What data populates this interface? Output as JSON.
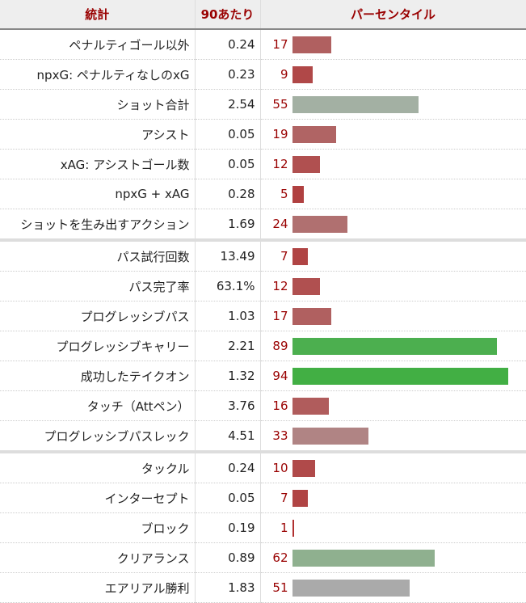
{
  "headers": {
    "stat": "統計",
    "per90": "90あたり",
    "percentile": "パーセンタイル"
  },
  "rows": [
    {
      "stat": "ペナルティゴール以外",
      "per90": "0.24",
      "pct": 17,
      "color": "#b06060"
    },
    {
      "stat": "npxG: ペナルティなしのxG",
      "per90": "0.23",
      "pct": 9,
      "color": "#b04848"
    },
    {
      "stat": "ショット合計",
      "per90": "2.54",
      "pct": 55,
      "color": "#a3b0a3"
    },
    {
      "stat": "アシスト",
      "per90": "0.05",
      "pct": 19,
      "color": "#b06464"
    },
    {
      "stat": "xAG: アシストゴール数",
      "per90": "0.05",
      "pct": 12,
      "color": "#b05050"
    },
    {
      "stat": "npxG + xAG",
      "per90": "0.28",
      "pct": 5,
      "color": "#b04040"
    },
    {
      "stat": "ショットを生み出すアクション",
      "per90": "1.69",
      "pct": 24,
      "color": "#b07070",
      "group_end": true
    },
    {
      "stat": "パス試行回数",
      "per90": "13.49",
      "pct": 7,
      "color": "#b04444"
    },
    {
      "stat": "パス完了率",
      "per90": "63.1%",
      "pct": 12,
      "color": "#b05050"
    },
    {
      "stat": "プログレッシブパス",
      "per90": "1.03",
      "pct": 17,
      "color": "#b06060"
    },
    {
      "stat": "プログレッシブキャリー",
      "per90": "2.21",
      "pct": 89,
      "color": "#4caf4f"
    },
    {
      "stat": "成功したテイクオン",
      "per90": "1.32",
      "pct": 94,
      "color": "#42af44"
    },
    {
      "stat": "タッチ（Attペン）",
      "per90": "3.76",
      "pct": 16,
      "color": "#b05c5c"
    },
    {
      "stat": "プログレッシブパスレック",
      "per90": "4.51",
      "pct": 33,
      "color": "#b08484",
      "group_end": true
    },
    {
      "stat": "タックル",
      "per90": "0.24",
      "pct": 10,
      "color": "#b04a4a"
    },
    {
      "stat": "インターセプト",
      "per90": "0.05",
      "pct": 7,
      "color": "#b04444"
    },
    {
      "stat": "ブロック",
      "per90": "0.19",
      "pct": 1,
      "color": "#b03030"
    },
    {
      "stat": "クリアランス",
      "per90": "0.89",
      "pct": 62,
      "color": "#8fb08f"
    },
    {
      "stat": "エアリアル勝利",
      "per90": "1.83",
      "pct": 51,
      "color": "#aaaaaa"
    }
  ]
}
